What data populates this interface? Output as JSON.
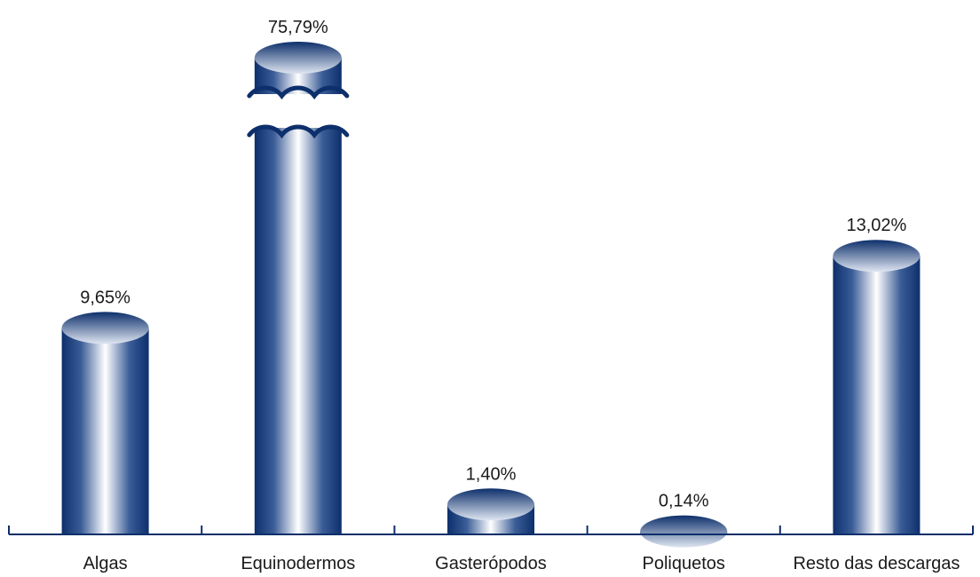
{
  "chart_data": {
    "type": "bar",
    "categories": [
      "Algas",
      "Equinodermos",
      "Gasterópodos",
      "Poliquetos",
      "Resto das descargas"
    ],
    "values": [
      9.65,
      75.79,
      1.4,
      0.14,
      13.02
    ],
    "value_labels": [
      "9,65%",
      "75,79%",
      "1,40%",
      "0,14%",
      "13,02%"
    ],
    "title": "",
    "xlabel": "",
    "ylabel": "",
    "broken_axis": true,
    "bar_style": "3d-cylinder",
    "grid": false,
    "colors": {
      "bar_dark": "#0d2f6b",
      "bar_light": "#ffffff",
      "axis": "#0d2f6b"
    }
  }
}
